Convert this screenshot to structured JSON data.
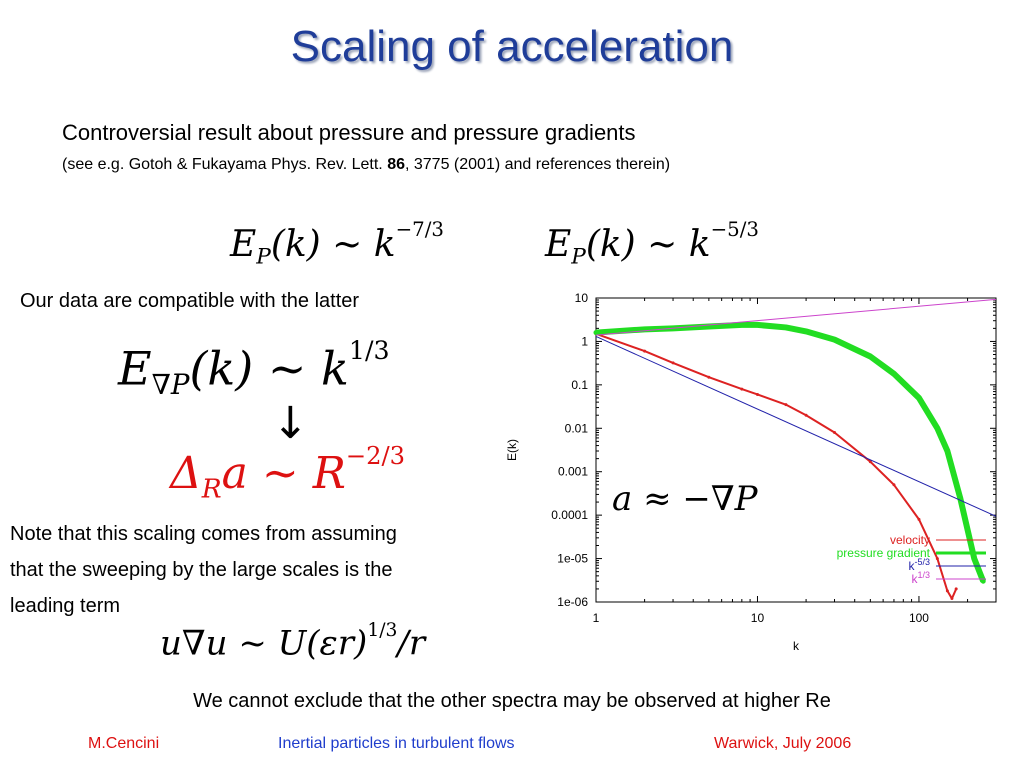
{
  "title": "Scaling of acceleration",
  "subtitle": "Controversial result about pressure and pressure gradients",
  "reference": {
    "before": "(see e.g. Gotoh & Fukayama Phys. Rev. Lett. ",
    "volume": "86",
    "after": ", 3775 (2001) and references therein)"
  },
  "equations": {
    "ep1": {
      "base": "E",
      "sub": "P",
      "mid": "(k) ~ k",
      "exp": "−7/3"
    },
    "ep2": {
      "base": "E",
      "sub": "P",
      "mid": "(k) ~ k",
      "exp": "−5/3"
    },
    "egrad": {
      "base": "E",
      "sub": "∇P",
      "mid": "(k) ~ k",
      "exp": "1/3"
    },
    "arrow": "↓",
    "delta": {
      "base": "Δ",
      "sub": "R",
      "mid": "a ~ R",
      "exp": "−2/3"
    },
    "sweep": {
      "pre": "u∇u ~ U(εr)",
      "exp": "1/3",
      "post": "/r"
    },
    "accel": "a ≈ −∇P"
  },
  "compatible_text": "Our data are compatible with the latter",
  "note_lines": [
    "Note that this scaling comes from assuming",
    "that the sweeping by the large scales is the",
    "leading term"
  ],
  "bottom_text": "We cannot exclude that the other spectra may be observed at higher Re",
  "footer": {
    "author": "M.Cencini",
    "talk": "Inertial particles in turbulent flows",
    "venue": "Warwick, July 2006"
  },
  "colors": {
    "title": "#1f3d99",
    "velocity": "#dd2222",
    "pressure_gradient": "#22dd22",
    "k_minus_5_3": "#2222aa",
    "k_1_3": "#cc44cc"
  },
  "chart_data": {
    "type": "line",
    "xscale": "log",
    "yscale": "log",
    "xlim": [
      1,
      300
    ],
    "ylim": [
      1e-06,
      10
    ],
    "xlabel": "k",
    "ylabel": "E(k)",
    "xticks": [
      "1",
      "10",
      "100"
    ],
    "yticks": [
      "10",
      "1",
      "0.1",
      "0.01",
      "0.001",
      "0.0001",
      "1e-05",
      "1e-06"
    ],
    "legend_position": "bottom-right",
    "series": [
      {
        "name": "velocity",
        "color": "#dd2222",
        "marker": "+",
        "x": [
          1,
          2,
          3,
          5,
          8,
          10,
          15,
          20,
          30,
          50,
          70,
          100,
          130,
          150,
          160,
          170
        ],
        "y": [
          1.5,
          0.6,
          0.32,
          0.15,
          0.08,
          0.06,
          0.035,
          0.02,
          0.008,
          0.0017,
          0.0005,
          8e-05,
          1e-05,
          1.8e-06,
          1.2e-06,
          2e-06
        ]
      },
      {
        "name": "pressure gradient",
        "color": "#22dd22",
        "marker": "*",
        "x": [
          1,
          2,
          3,
          5,
          8,
          10,
          15,
          20,
          30,
          50,
          70,
          100,
          130,
          150,
          180,
          220,
          250
        ],
        "y": [
          1.6,
          1.9,
          2.0,
          2.2,
          2.4,
          2.4,
          2.1,
          1.7,
          1.1,
          0.45,
          0.18,
          0.05,
          0.01,
          0.003,
          0.00025,
          1e-05,
          3e-06
        ]
      },
      {
        "name": "k",
        "label_exp": "-5/3",
        "color": "#2222aa",
        "x": [
          1,
          300
        ],
        "y": [
          1.3,
          9.4e-05
        ]
      },
      {
        "name": "k",
        "label_exp": "1/3",
        "color": "#cc44cc",
        "x": [
          1,
          300
        ],
        "y": [
          1.4,
          9.3
        ]
      }
    ]
  }
}
